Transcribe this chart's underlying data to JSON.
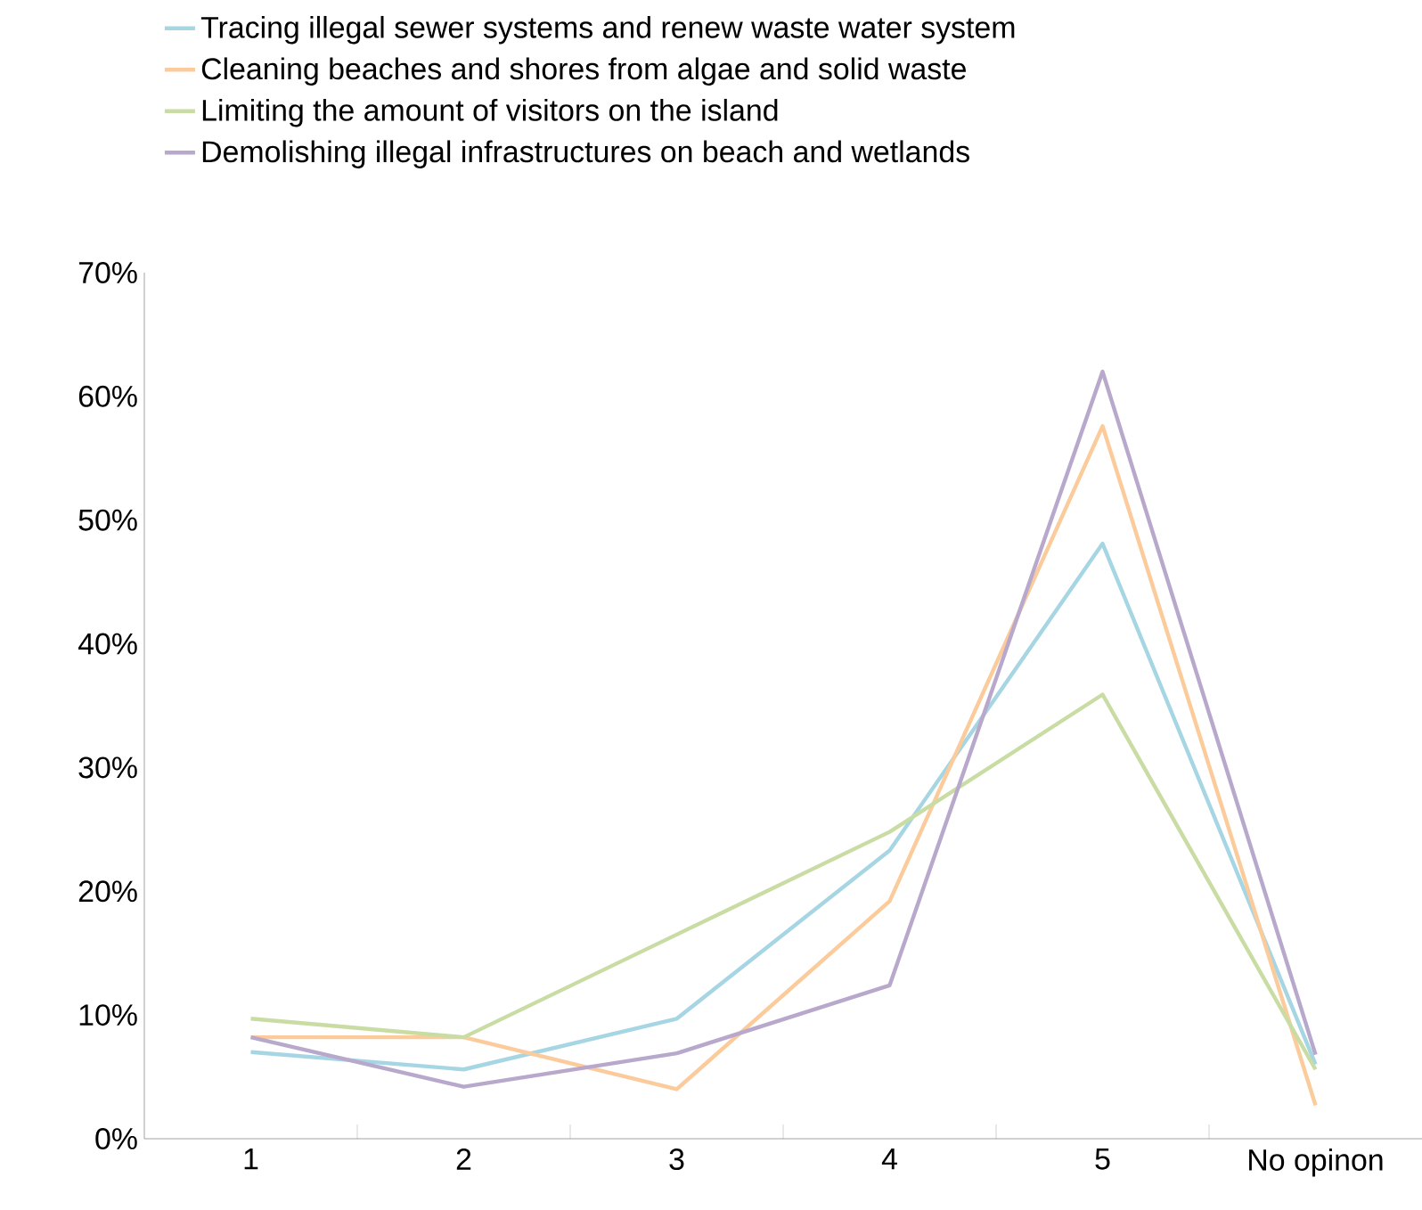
{
  "chart_data": {
    "type": "line",
    "categories": [
      "1",
      "2",
      "3",
      "4",
      "5",
      "No opinon"
    ],
    "series": [
      {
        "name": "Tracing illegal sewer systems and renew waste water system",
        "color": "#a6d5e3",
        "values": [
          7.0,
          5.6,
          9.7,
          23.3,
          48.1,
          6.0
        ]
      },
      {
        "name": "Cleaning beaches and shores from algae and solid waste",
        "color": "#fbcb9b",
        "values": [
          8.2,
          8.2,
          4.0,
          19.2,
          57.6,
          2.7
        ]
      },
      {
        "name": "Limiting the amount of visitors on the island",
        "color": "#c9dca3",
        "values": [
          9.7,
          8.2,
          16.5,
          24.8,
          35.9,
          5.6
        ]
      },
      {
        "name": "Demolishing illegal infrastructures on beach and wetlands",
        "color": "#b8a8cc",
        "values": [
          8.2,
          4.2,
          6.9,
          12.4,
          62.0,
          6.8
        ]
      }
    ],
    "ylim": [
      0,
      70
    ],
    "yticks": [
      {
        "value": 0,
        "label": "0%"
      },
      {
        "value": 10,
        "label": "10%"
      },
      {
        "value": 20,
        "label": "20%"
      },
      {
        "value": 30,
        "label": "30%"
      },
      {
        "value": 40,
        "label": "40%"
      },
      {
        "value": 50,
        "label": "50%"
      },
      {
        "value": 60,
        "label": "60%"
      },
      {
        "value": 70,
        "label": "70%"
      }
    ],
    "legend": "top",
    "grid": false,
    "marker": "none",
    "line_style": "solid"
  }
}
